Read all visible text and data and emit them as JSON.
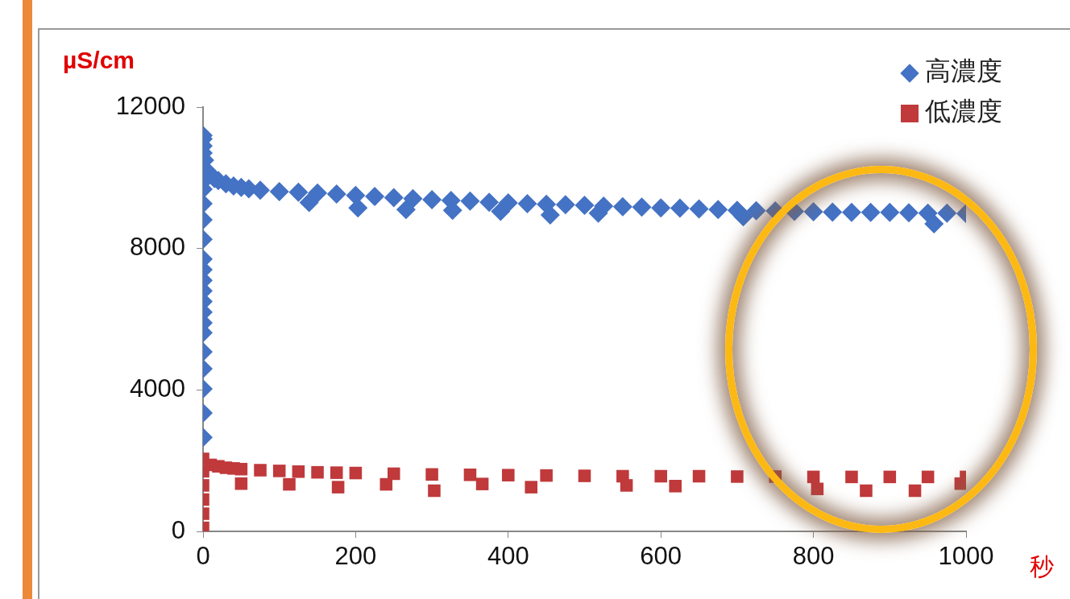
{
  "chart_data": {
    "type": "scatter",
    "ylabel": "µS/cm",
    "xlabel": "秒",
    "xlim": [
      0,
      1000
    ],
    "xticks": [
      0,
      200,
      400,
      600,
      800,
      1000
    ],
    "ylim": [
      0,
      12000
    ],
    "yticks": [
      0,
      4000,
      8000,
      12000
    ],
    "grid": false,
    "legend": "top right",
    "series": [
      {
        "name": "高濃度",
        "color": "#4472c4",
        "marker": "diamond",
        "x": [
          0,
          0,
          0,
          0,
          0,
          0,
          0,
          0,
          0,
          0,
          0,
          0,
          0,
          0,
          0,
          0,
          0,
          0,
          0,
          0,
          0,
          0,
          2,
          5,
          15,
          20,
          30,
          40,
          50,
          60,
          75,
          100,
          125,
          139,
          150,
          175,
          200,
          203,
          225,
          250,
          266,
          275,
          300,
          325,
          327,
          350,
          375,
          390,
          400,
          425,
          450,
          455,
          475,
          500,
          518,
          525,
          550,
          575,
          600,
          625,
          650,
          675,
          700,
          708,
          725,
          750,
          775,
          800,
          825,
          850,
          875,
          900,
          925,
          950,
          958,
          975,
          1000
        ],
        "values": [
          2660,
          3350,
          4030,
          4600,
          5080,
          5620,
          5900,
          6200,
          6500,
          6800,
          7100,
          7400,
          7700,
          8260,
          8810,
          9270,
          9680,
          9900,
          10700,
          10900,
          11100,
          11200,
          10500,
          10200,
          9980,
          9920,
          9830,
          9770,
          9730,
          9690,
          9650,
          9610,
          9590,
          9300,
          9570,
          9540,
          9500,
          9150,
          9470,
          9440,
          9100,
          9410,
          9380,
          9360,
          9080,
          9340,
          9310,
          9050,
          9290,
          9270,
          9250,
          8950,
          9240,
          9220,
          9000,
          9200,
          9180,
          9170,
          9150,
          9140,
          9120,
          9100,
          9080,
          8900,
          9070,
          9060,
          9050,
          9040,
          9030,
          9020,
          9020,
          9020,
          9010,
          9000,
          8700,
          9000,
          8990
        ]
      },
      {
        "name": "低濃度",
        "color": "#c0393b",
        "marker": "square",
        "x": [
          0,
          0,
          0,
          0,
          0,
          0,
          10,
          20,
          30,
          40,
          50,
          50,
          75,
          100,
          113,
          125,
          150,
          175,
          177,
          200,
          240,
          250,
          300,
          303,
          350,
          366,
          400,
          430,
          450,
          500,
          550,
          555,
          600,
          619,
          650,
          700,
          750,
          800,
          805,
          850,
          869,
          900,
          933,
          950,
          993,
          1000
        ],
        "values": [
          100,
          500,
          900,
          1300,
          1700,
          2050,
          1880,
          1840,
          1800,
          1780,
          1760,
          1350,
          1730,
          1710,
          1330,
          1690,
          1670,
          1660,
          1250,
          1650,
          1330,
          1630,
          1610,
          1150,
          1600,
          1340,
          1590,
          1250,
          1580,
          1570,
          1560,
          1300,
          1560,
          1280,
          1560,
          1550,
          1550,
          1540,
          1200,
          1540,
          1150,
          1540,
          1150,
          1540,
          1350,
          1540
        ]
      }
    ]
  }
}
